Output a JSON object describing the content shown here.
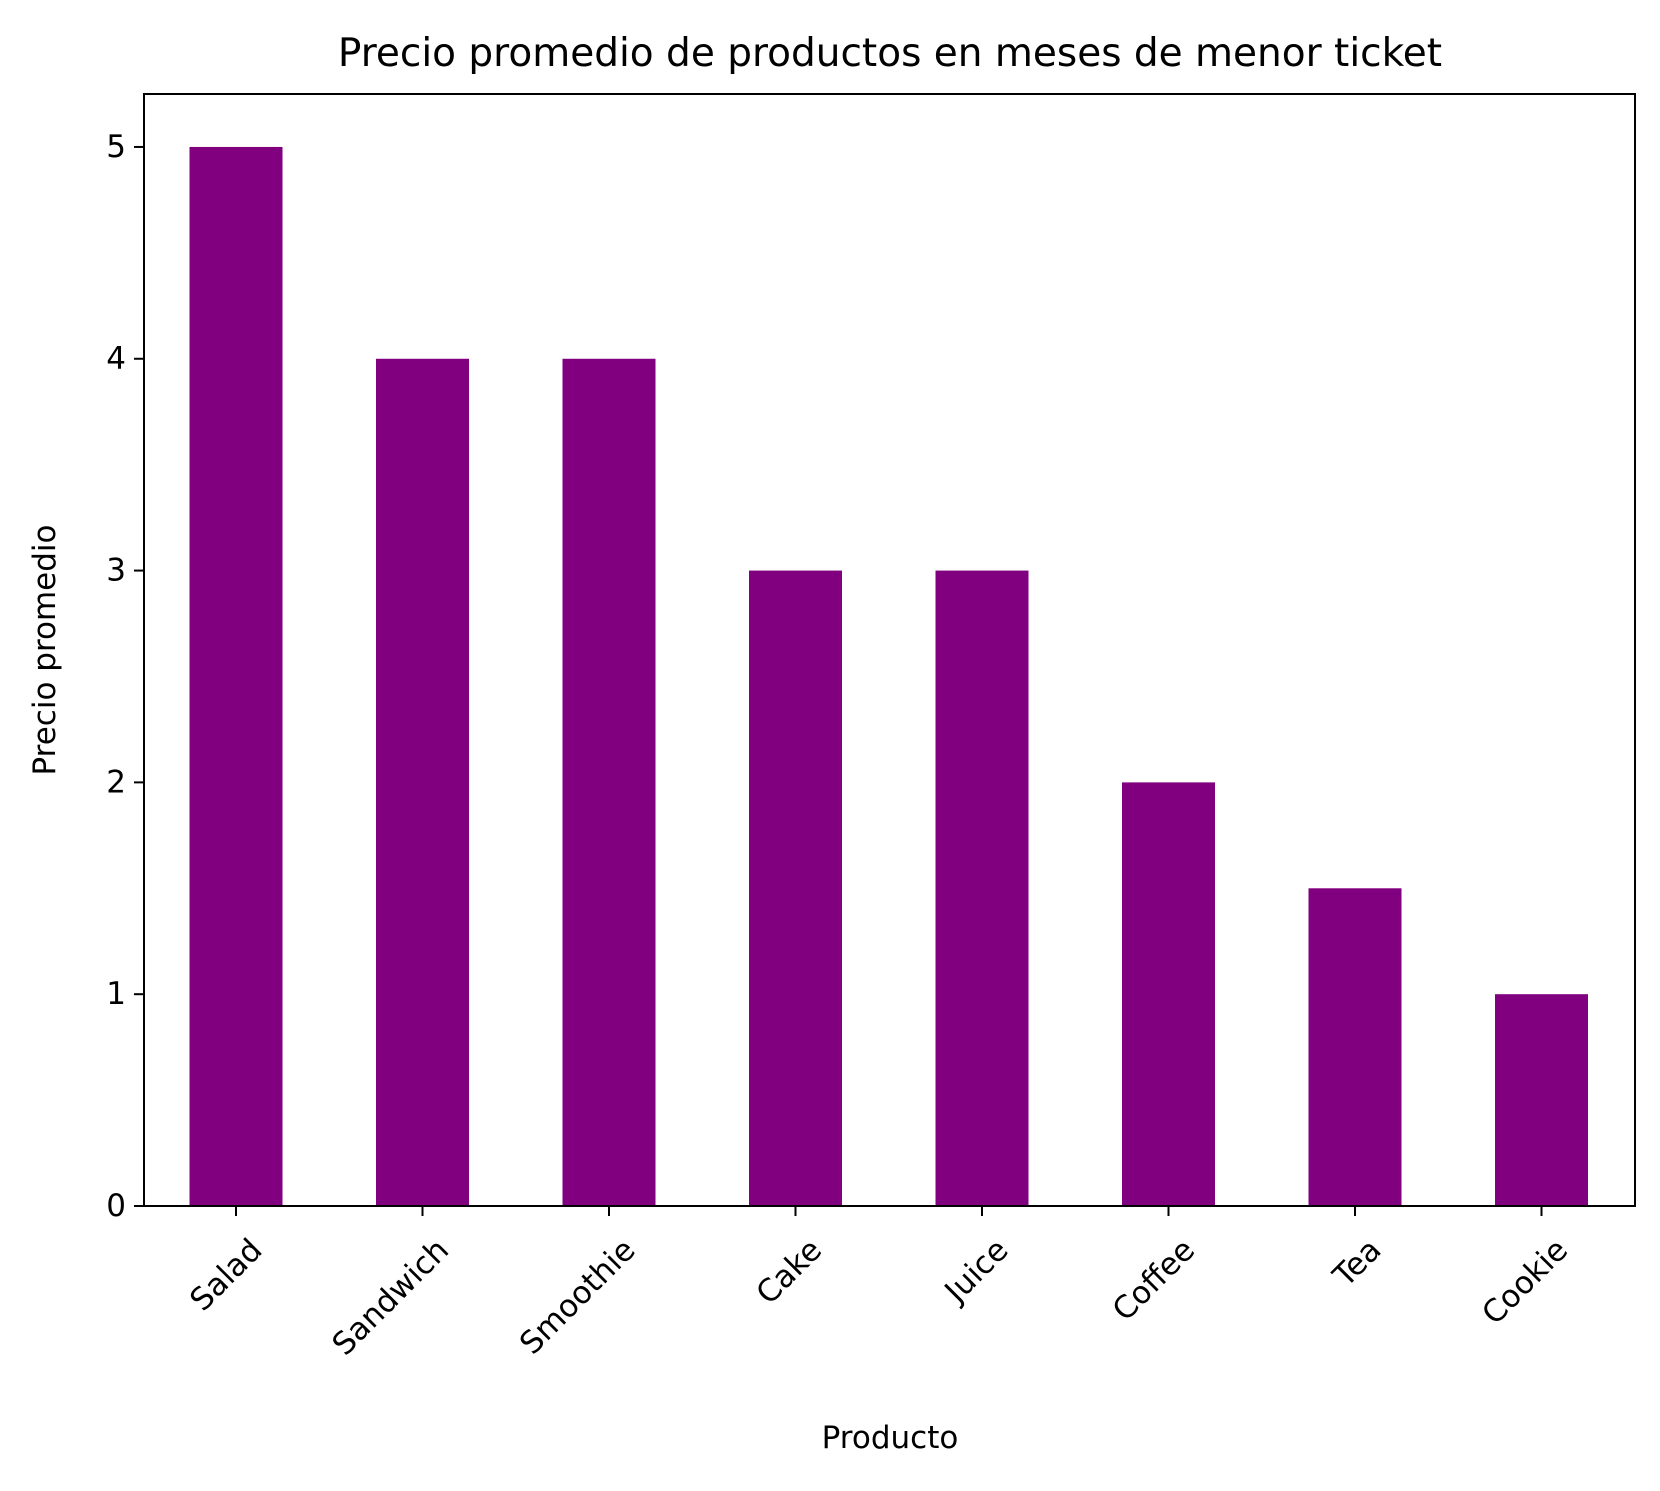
{
  "chart_data": {
    "type": "bar",
    "title": "Precio promedio de productos en meses de menor ticket",
    "xlabel": "Producto",
    "ylabel": "Precio promedio",
    "categories": [
      "Salad",
      "Sandwich",
      "Smoothie",
      "Cake",
      "Juice",
      "Coffee",
      "Tea",
      "Cookie"
    ],
    "values": [
      5,
      4,
      4,
      3,
      3,
      2,
      1.5,
      1
    ],
    "ylim": [
      0,
      5.25
    ],
    "yticks": [
      "0",
      "1",
      "2",
      "3",
      "4",
      "5"
    ],
    "grid": false,
    "legend": false,
    "bar_color": "#800080"
  }
}
